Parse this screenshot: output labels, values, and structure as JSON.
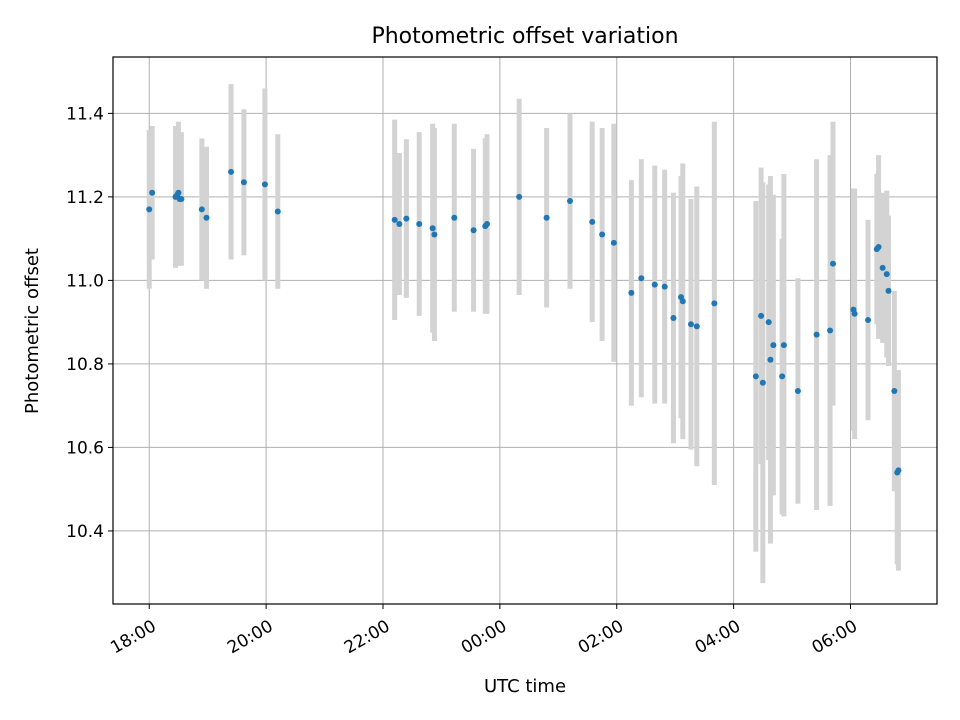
{
  "chart_data": {
    "type": "scatter",
    "title": "Photometric offset variation",
    "xlabel": "UTC time",
    "ylabel": "Photometric offset",
    "x_unit": "hours since 18:00 UTC",
    "xlim": [
      -0.62,
      13.48
    ],
    "ylim": [
      10.225,
      11.535
    ],
    "grid": true,
    "colors": {
      "point": "#1f77b4",
      "errorbar": "#d3d3d3",
      "grid": "#b0b0b0"
    },
    "xticks": [
      {
        "value": 0,
        "label": "18:00"
      },
      {
        "value": 2,
        "label": "20:00"
      },
      {
        "value": 4,
        "label": "22:00"
      },
      {
        "value": 6,
        "label": "00:00"
      },
      {
        "value": 8,
        "label": "02:00"
      },
      {
        "value": 10,
        "label": "04:00"
      },
      {
        "value": 12,
        "label": "06:00"
      }
    ],
    "yticks": [
      {
        "value": 10.4,
        "label": "10.4"
      },
      {
        "value": 10.6,
        "label": "10.6"
      },
      {
        "value": 10.8,
        "label": "10.8"
      },
      {
        "value": 11.0,
        "label": "11.0"
      },
      {
        "value": 11.2,
        "label": "11.2"
      },
      {
        "value": 11.4,
        "label": "11.4"
      }
    ],
    "points": [
      {
        "x": 0.0,
        "y": 11.17,
        "err": 0.19
      },
      {
        "x": 0.05,
        "y": 11.21,
        "err": 0.16
      },
      {
        "x": 0.45,
        "y": 11.2,
        "err": 0.17
      },
      {
        "x": 0.48,
        "y": 11.205,
        "err": 0.16
      },
      {
        "x": 0.5,
        "y": 11.21,
        "err": 0.17
      },
      {
        "x": 0.52,
        "y": 11.195,
        "err": 0.16
      },
      {
        "x": 0.55,
        "y": 11.195,
        "err": 0.16
      },
      {
        "x": 0.9,
        "y": 11.17,
        "err": 0.17
      },
      {
        "x": 0.98,
        "y": 11.15,
        "err": 0.17
      },
      {
        "x": 1.4,
        "y": 11.26,
        "err": 0.21
      },
      {
        "x": 1.62,
        "y": 11.235,
        "err": 0.175
      },
      {
        "x": 1.98,
        "y": 11.23,
        "err": 0.23
      },
      {
        "x": 2.2,
        "y": 11.165,
        "err": 0.185
      },
      {
        "x": 4.2,
        "y": 11.145,
        "err": 0.24
      },
      {
        "x": 4.28,
        "y": 11.135,
        "err": 0.17
      },
      {
        "x": 4.4,
        "y": 11.148,
        "err": 0.19
      },
      {
        "x": 4.62,
        "y": 11.135,
        "err": 0.22
      },
      {
        "x": 4.85,
        "y": 11.125,
        "err": 0.25
      },
      {
        "x": 4.88,
        "y": 11.11,
        "err": 0.255
      },
      {
        "x": 5.22,
        "y": 11.15,
        "err": 0.225
      },
      {
        "x": 5.55,
        "y": 11.12,
        "err": 0.195
      },
      {
        "x": 5.75,
        "y": 11.13,
        "err": 0.21
      },
      {
        "x": 5.78,
        "y": 11.135,
        "err": 0.215
      },
      {
        "x": 6.33,
        "y": 11.2,
        "err": 0.235
      },
      {
        "x": 6.8,
        "y": 11.15,
        "err": 0.215
      },
      {
        "x": 7.2,
        "y": 11.19,
        "err": 0.21
      },
      {
        "x": 7.58,
        "y": 11.14,
        "err": 0.24
      },
      {
        "x": 7.75,
        "y": 11.11,
        "err": 0.255
      },
      {
        "x": 7.95,
        "y": 11.09,
        "err": 0.285
      },
      {
        "x": 8.25,
        "y": 10.97,
        "err": 0.27
      },
      {
        "x": 8.42,
        "y": 11.005,
        "err": 0.285
      },
      {
        "x": 8.65,
        "y": 10.99,
        "err": 0.285
      },
      {
        "x": 8.82,
        "y": 10.985,
        "err": 0.28
      },
      {
        "x": 8.97,
        "y": 10.91,
        "err": 0.3
      },
      {
        "x": 9.1,
        "y": 10.96,
        "err": 0.29
      },
      {
        "x": 9.13,
        "y": 10.95,
        "err": 0.33
      },
      {
        "x": 9.27,
        "y": 10.895,
        "err": 0.3
      },
      {
        "x": 9.37,
        "y": 10.89,
        "err": 0.335
      },
      {
        "x": 9.67,
        "y": 10.945,
        "err": 0.435
      },
      {
        "x": 10.38,
        "y": 10.77,
        "err": 0.42
      },
      {
        "x": 10.47,
        "y": 10.915,
        "err": 0.355
      },
      {
        "x": 10.5,
        "y": 10.755,
        "err": 0.48
      },
      {
        "x": 10.6,
        "y": 10.9,
        "err": 0.33
      },
      {
        "x": 10.63,
        "y": 10.81,
        "err": 0.44
      },
      {
        "x": 10.68,
        "y": 10.845,
        "err": 0.36
      },
      {
        "x": 10.83,
        "y": 10.77,
        "err": 0.33
      },
      {
        "x": 10.86,
        "y": 10.845,
        "err": 0.41
      },
      {
        "x": 11.1,
        "y": 10.735,
        "err": 0.27
      },
      {
        "x": 11.42,
        "y": 10.87,
        "err": 0.42
      },
      {
        "x": 11.65,
        "y": 10.88,
        "err": 0.42
      },
      {
        "x": 11.7,
        "y": 11.04,
        "err": 0.34
      },
      {
        "x": 12.05,
        "y": 10.93,
        "err": 0.29
      },
      {
        "x": 12.07,
        "y": 10.92,
        "err": 0.3
      },
      {
        "x": 12.3,
        "y": 10.905,
        "err": 0.24
      },
      {
        "x": 12.45,
        "y": 11.075,
        "err": 0.18
      },
      {
        "x": 12.48,
        "y": 11.08,
        "err": 0.22
      },
      {
        "x": 12.55,
        "y": 11.03,
        "err": 0.18
      },
      {
        "x": 12.62,
        "y": 11.015,
        "err": 0.2
      },
      {
        "x": 12.65,
        "y": 10.975,
        "err": 0.18
      },
      {
        "x": 12.75,
        "y": 10.735,
        "err": 0.24
      },
      {
        "x": 12.8,
        "y": 10.54,
        "err": 0.22
      },
      {
        "x": 12.82,
        "y": 10.545,
        "err": 0.24
      }
    ]
  }
}
